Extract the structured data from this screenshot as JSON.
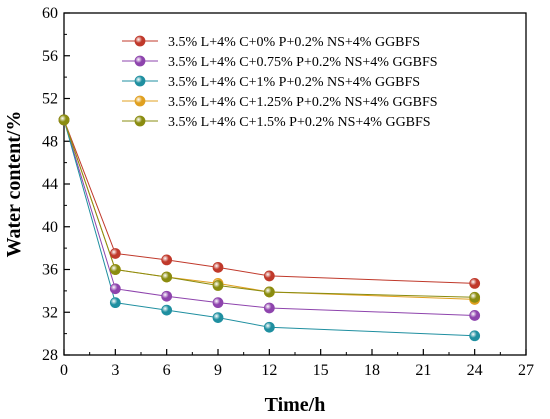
{
  "chart_data": {
    "type": "line",
    "xlabel": "Time/h",
    "ylabel": "Water content/%",
    "xlim": [
      0,
      27
    ],
    "ylim": [
      28,
      60
    ],
    "xticks": [
      0,
      3,
      6,
      9,
      12,
      15,
      18,
      21,
      24,
      27
    ],
    "yticks": [
      28,
      32,
      36,
      40,
      44,
      48,
      52,
      56,
      60
    ],
    "x": [
      0,
      3,
      6,
      9,
      12,
      24
    ],
    "legend_position": "top-right",
    "grid": false,
    "series": [
      {
        "name": "3.5% L+4% C+0% P+0.2% NS+4% GGBFS",
        "color": "#c0392b",
        "values": [
          50.0,
          37.5,
          36.9,
          36.2,
          35.4,
          34.7
        ]
      },
      {
        "name": "3.5% L+4% C+0.75% P+0.2% NS+4% GGBFS",
        "color": "#8e44ad",
        "values": [
          50.0,
          34.2,
          33.5,
          32.9,
          32.4,
          31.7
        ]
      },
      {
        "name": "3.5% L+4% C+1% P+0.2% NS+4% GGBFS",
        "color": "#1f8fa0",
        "values": [
          50.0,
          32.9,
          32.2,
          31.5,
          30.6,
          29.8
        ]
      },
      {
        "name": "3.5% L+4% C+1.25% P+0.2% NS+4% GGBFS",
        "color": "#e0a020",
        "values": [
          50.0,
          36.0,
          35.3,
          34.7,
          33.9,
          33.2
        ]
      },
      {
        "name": "3.5% L+4% C+1.5% P+0.2% NS+4% GGBFS",
        "color": "#8a8c10",
        "values": [
          50.0,
          36.0,
          35.3,
          34.5,
          33.9,
          33.4
        ]
      }
    ]
  }
}
